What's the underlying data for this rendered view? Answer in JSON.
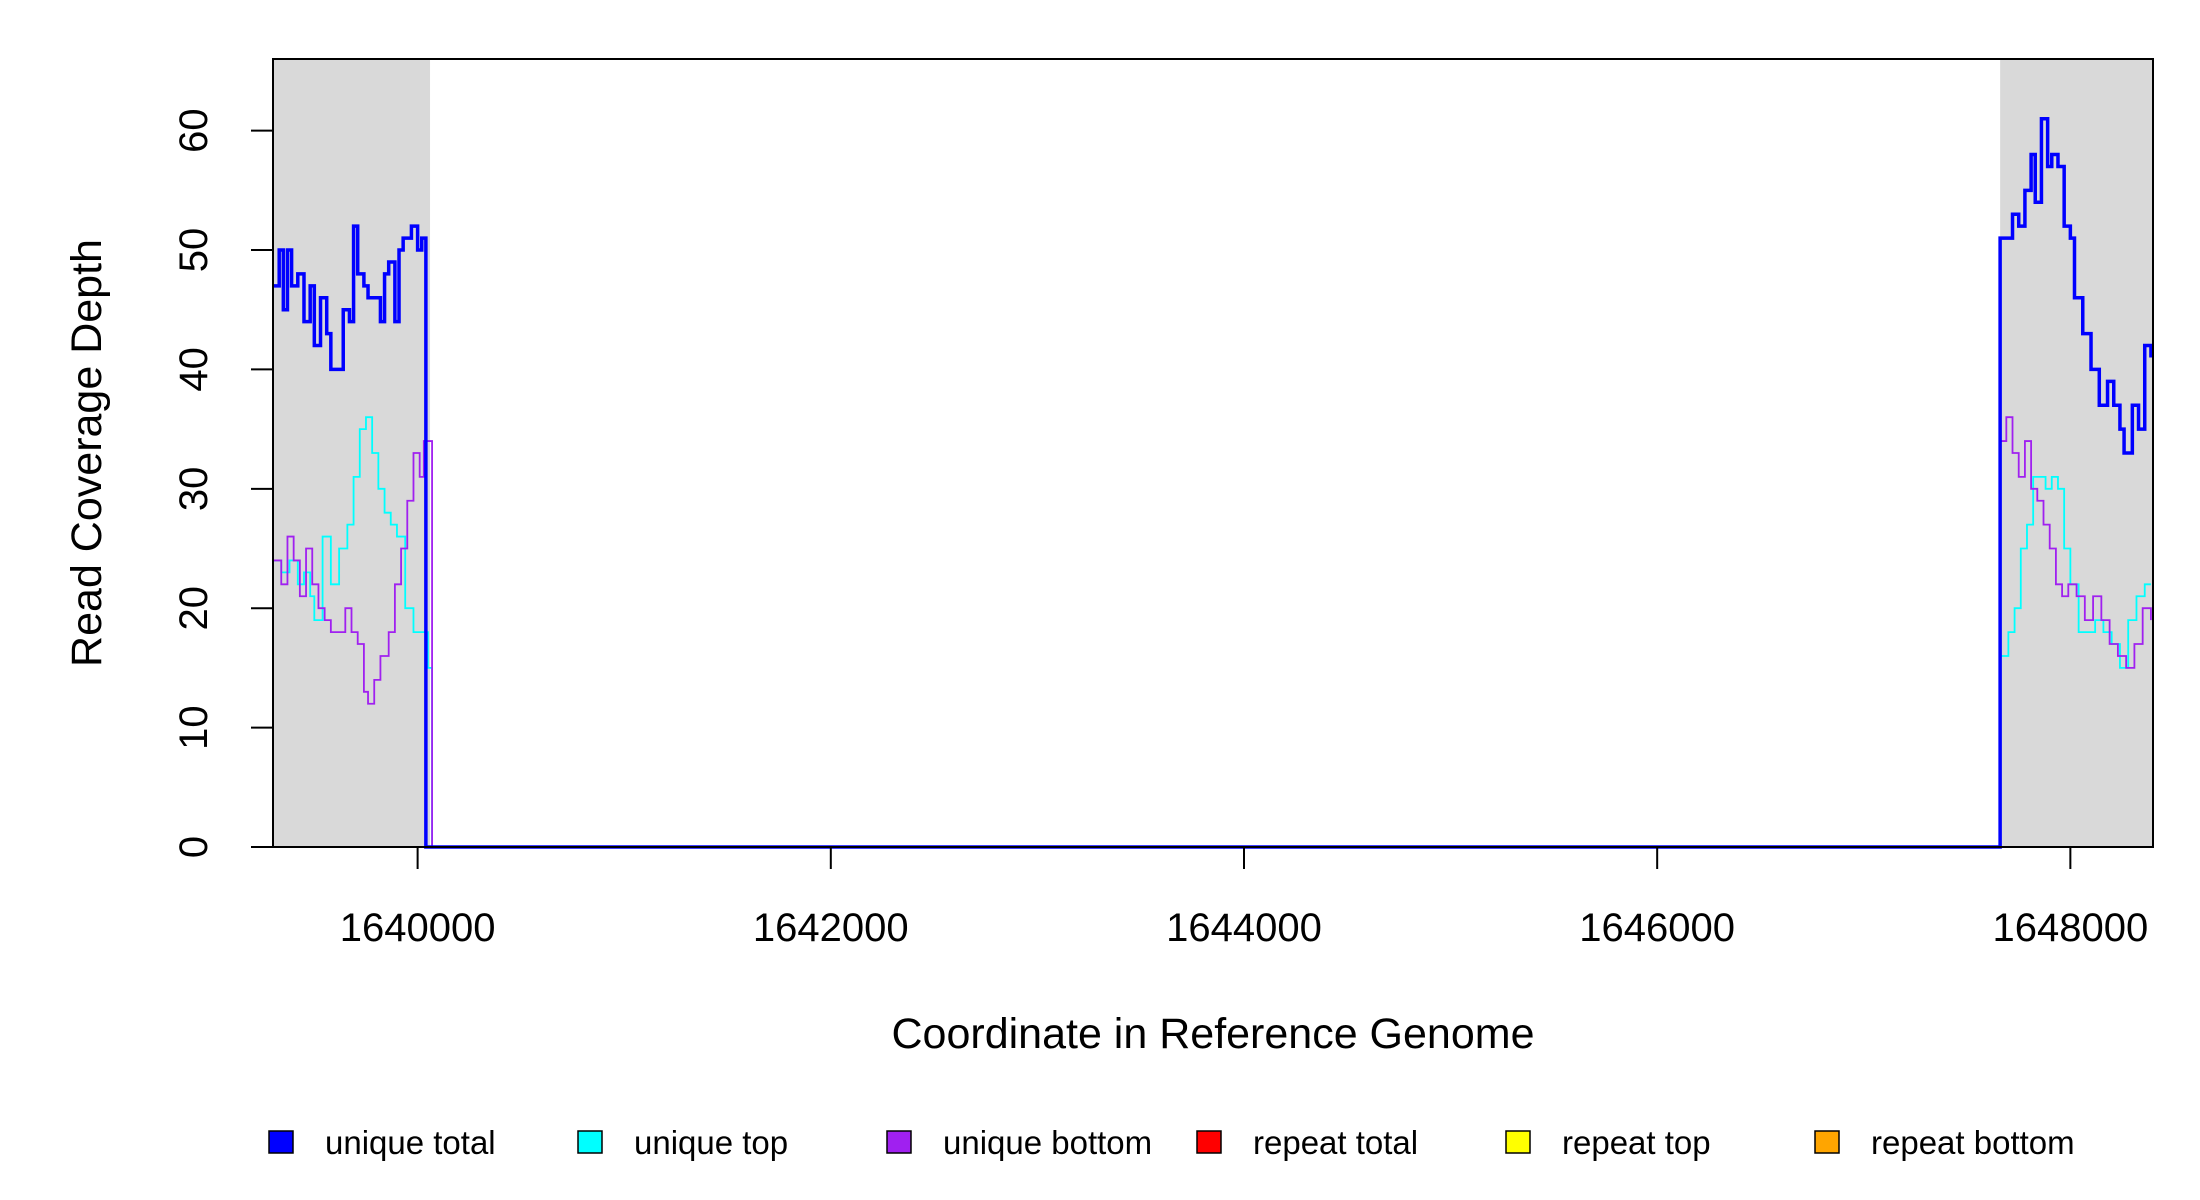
{
  "chart_data": {
    "type": "line",
    "xlabel": "Coordinate in Reference Genome",
    "ylabel": "Read Coverage Depth",
    "xlim": [
      1639300,
      1648400
    ],
    "ylim": [
      0,
      66
    ],
    "x_ticks": [
      1640000,
      1642000,
      1644000,
      1646000,
      1648000
    ],
    "x_tick_labels": [
      "1640000",
      "1642000",
      "1644000",
      "1646000",
      "1648000"
    ],
    "y_ticks": [
      0,
      10,
      20,
      30,
      40,
      50,
      60
    ],
    "y_tick_labels": [
      "0",
      "10",
      "20",
      "30",
      "40",
      "50",
      "60"
    ],
    "shaded_regions": [
      [
        1639300,
        1640060
      ],
      [
        1647660,
        1648400
      ]
    ],
    "shade_color": "#d9d9d9",
    "grid": false,
    "legend_position": "bottom",
    "series": [
      {
        "name": "unique total",
        "color": "#0000ff",
        "line_weight": "thick",
        "x": [
          1639300,
          1639330,
          1639350,
          1639370,
          1639390,
          1639420,
          1639450,
          1639480,
          1639500,
          1639530,
          1639560,
          1639580,
          1639600,
          1639640,
          1639670,
          1639690,
          1639710,
          1639740,
          1639760,
          1639790,
          1639820,
          1639840,
          1639860,
          1639890,
          1639910,
          1639930,
          1639950,
          1639970,
          1640000,
          1640020,
          1640040,
          1640055,
          1640070,
          1647660,
          1647690,
          1647720,
          1647750,
          1647780,
          1647810,
          1647830,
          1647860,
          1647890,
          1647910,
          1647940,
          1647970,
          1648000,
          1648020,
          1648060,
          1648100,
          1648140,
          1648180,
          1648210,
          1648240,
          1648260,
          1648300,
          1648330,
          1648360,
          1648390
        ],
        "y": [
          47,
          50,
          45,
          50,
          47,
          48,
          44,
          47,
          42,
          46,
          43,
          40,
          40,
          45,
          44,
          52,
          48,
          47,
          46,
          46,
          44,
          48,
          49,
          44,
          50,
          51,
          51,
          52,
          50,
          51,
          0,
          0,
          0,
          51,
          51,
          53,
          52,
          55,
          58,
          54,
          61,
          57,
          58,
          57,
          52,
          51,
          46,
          43,
          40,
          37,
          39,
          37,
          35,
          33,
          37,
          35,
          42,
          41
        ]
      },
      {
        "name": "unique top",
        "color": "#00ffff",
        "line_weight": "thin",
        "x": [
          1639300,
          1639340,
          1639380,
          1639420,
          1639450,
          1639480,
          1639500,
          1639540,
          1639580,
          1639620,
          1639660,
          1639690,
          1639720,
          1639750,
          1639780,
          1639810,
          1639840,
          1639870,
          1639900,
          1639940,
          1639980,
          1640020,
          1640050,
          1640070,
          1647660,
          1647700,
          1647730,
          1647760,
          1647790,
          1647820,
          1647850,
          1647880,
          1647910,
          1647940,
          1647970,
          1648000,
          1648040,
          1648080,
          1648120,
          1648160,
          1648200,
          1648240,
          1648280,
          1648320,
          1648360,
          1648390
        ],
        "y": [
          24,
          23,
          24,
          22,
          23,
          21,
          19,
          26,
          22,
          25,
          27,
          31,
          35,
          36,
          33,
          30,
          28,
          27,
          26,
          20,
          18,
          18,
          15,
          0,
          16,
          18,
          20,
          25,
          27,
          31,
          31,
          30,
          31,
          30,
          25,
          22,
          18,
          18,
          19,
          18,
          17,
          15,
          19,
          21,
          22,
          22
        ]
      },
      {
        "name": "unique bottom",
        "color": "#a020f0",
        "line_weight": "thin",
        "x": [
          1639300,
          1639340,
          1639370,
          1639400,
          1639430,
          1639460,
          1639490,
          1639520,
          1639550,
          1639580,
          1639620,
          1639650,
          1639680,
          1639710,
          1639740,
          1639760,
          1639790,
          1639820,
          1639860,
          1639890,
          1639920,
          1639950,
          1639980,
          1640010,
          1640030,
          1640060,
          1640070,
          1647660,
          1647690,
          1647720,
          1647750,
          1647780,
          1647810,
          1647840,
          1647870,
          1647900,
          1647930,
          1647960,
          1647990,
          1648030,
          1648070,
          1648110,
          1648150,
          1648190,
          1648230,
          1648270,
          1648310,
          1648350,
          1648390
        ],
        "y": [
          24,
          22,
          26,
          24,
          21,
          25,
          22,
          20,
          19,
          18,
          18,
          20,
          18,
          17,
          13,
          12,
          14,
          16,
          18,
          22,
          25,
          29,
          33,
          31,
          34,
          34,
          0,
          34,
          36,
          33,
          31,
          34,
          30,
          29,
          27,
          25,
          22,
          21,
          22,
          21,
          19,
          21,
          19,
          17,
          16,
          15,
          17,
          20,
          19
        ]
      },
      {
        "name": "repeat total",
        "color": "#ff0000",
        "line_weight": "thin",
        "x": [
          1639300,
          1648400
        ],
        "y": [
          0,
          0
        ]
      },
      {
        "name": "repeat top",
        "color": "#ffff00",
        "line_weight": "thin",
        "x": [
          1639300,
          1648400
        ],
        "y": [
          0,
          0
        ]
      },
      {
        "name": "repeat bottom",
        "color": "#ffa500",
        "line_weight": "thin",
        "x": [
          1639300,
          1648400
        ],
        "y": [
          0,
          0
        ]
      }
    ]
  }
}
